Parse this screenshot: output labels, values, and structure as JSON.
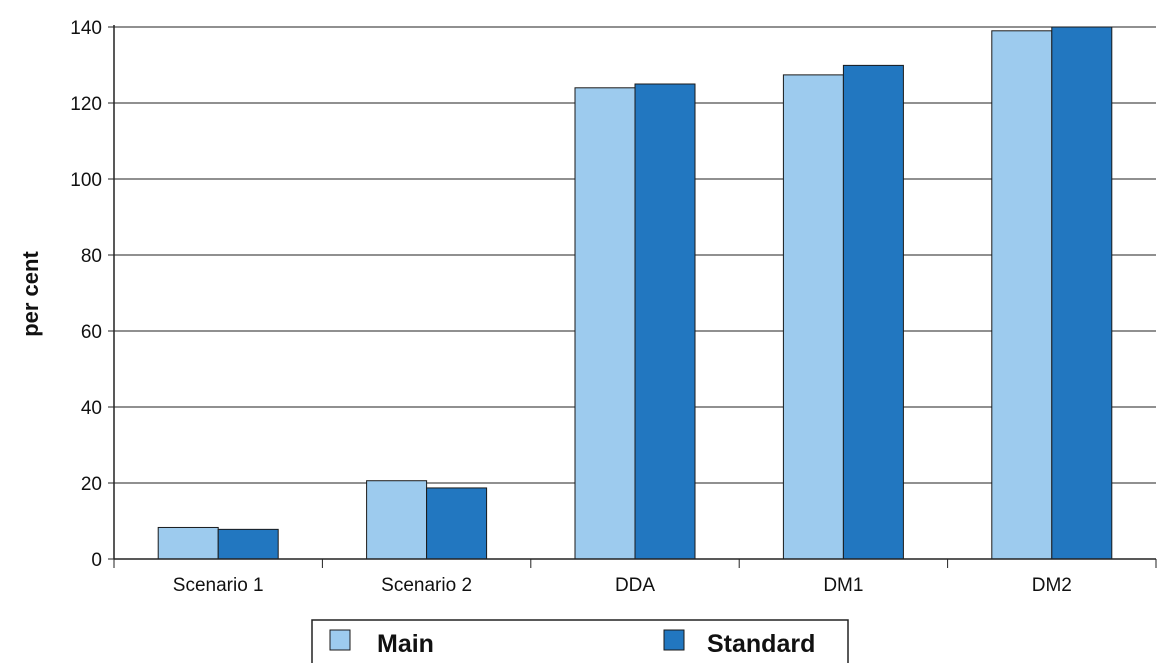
{
  "chart_data": {
    "type": "bar",
    "title": "",
    "xlabel": "",
    "ylabel": "per cent",
    "ylim": [
      0,
      140
    ],
    "yticks": [
      0,
      20,
      40,
      60,
      80,
      100,
      120,
      140
    ],
    "grid": true,
    "legend_position": "bottom-center",
    "categories": [
      "Scenario 1",
      "Scenario 2",
      "DDA",
      "DM1",
      "DM2"
    ],
    "series": [
      {
        "name": "Main",
        "color": "#9dcbee",
        "values": [
          8.3,
          20.6,
          124,
          127.4,
          139
        ]
      },
      {
        "name": "Standard",
        "color": "#2277c0",
        "values": [
          7.8,
          18.7,
          125,
          129.9,
          140
        ]
      }
    ]
  }
}
